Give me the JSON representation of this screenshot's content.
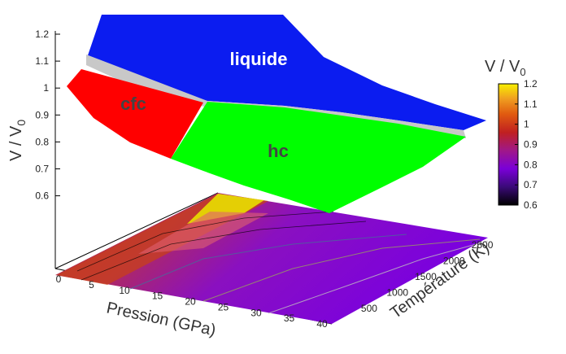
{
  "chart_data": {
    "type": "surface3d",
    "z_axis": {
      "label_main": "V / V",
      "label_sub": "0",
      "ticks": [
        "0.6",
        "0.7",
        "0.8",
        "0.9",
        "1",
        "1.1",
        "1.2"
      ],
      "range": [
        0.55,
        1.2
      ]
    },
    "x_axis": {
      "label": "Pression (GPa)",
      "ticks": [
        "0",
        "5",
        "10",
        "15",
        "20",
        "25",
        "30",
        "35",
        "40"
      ],
      "range": [
        0,
        40
      ]
    },
    "y_axis": {
      "label": "Température (K)",
      "ticks": [
        "500",
        "1000",
        "1500",
        "2000",
        "2500"
      ],
      "range": [
        300,
        2600
      ]
    },
    "colorbar": {
      "label_main": "V / V",
      "label_sub": "0",
      "ticks": [
        "1.2",
        "1.1",
        "1",
        "0.9",
        "0.8",
        "0.7",
        "0.6"
      ],
      "range": [
        0.6,
        1.2
      ]
    },
    "regions": [
      {
        "name": "liquide",
        "color": "#0b1cf0"
      },
      {
        "name": "cfc",
        "color": "#ff0000"
      },
      {
        "name": "hc",
        "color": "#00ff00"
      }
    ],
    "gap_color": "#c8c8c8",
    "colormap": [
      "#000000",
      "#3a0a78",
      "#7a00d8",
      "#a01888",
      "#c02020",
      "#e05a10",
      "#f0a020",
      "#f8f000"
    ]
  }
}
